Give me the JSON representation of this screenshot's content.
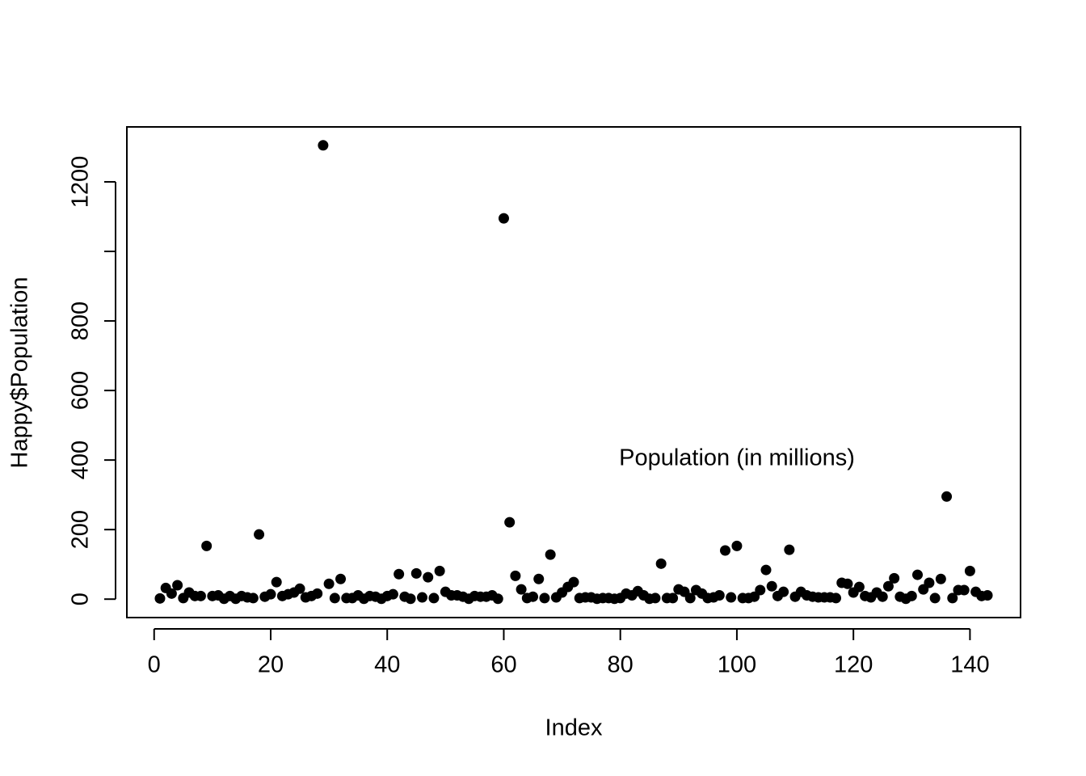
{
  "chart_data": {
    "type": "scatter",
    "xlabel": "Index",
    "ylabel": "Happy$Population",
    "annotation": "Population (in millions)",
    "color": "#000000",
    "xlim": [
      -4.68,
      148.68
    ],
    "ylim": [
      -53,
      1358
    ],
    "xticks": [
      0,
      20,
      40,
      60,
      80,
      100,
      120,
      140
    ],
    "yticks": [
      0,
      200,
      400,
      600,
      800,
      1200
    ],
    "yticks_unlabeled": [
      1000
    ],
    "x": [
      1,
      2,
      3,
      4,
      5,
      6,
      7,
      8,
      9,
      10,
      11,
      12,
      13,
      14,
      15,
      16,
      17,
      18,
      19,
      20,
      21,
      22,
      23,
      24,
      25,
      26,
      27,
      28,
      29,
      30,
      31,
      32,
      33,
      34,
      35,
      36,
      37,
      38,
      39,
      40,
      41,
      42,
      43,
      44,
      45,
      46,
      47,
      48,
      49,
      50,
      51,
      52,
      53,
      54,
      55,
      56,
      57,
      58,
      59,
      60,
      61,
      62,
      63,
      64,
      65,
      66,
      67,
      68,
      69,
      70,
      71,
      72,
      73,
      74,
      75,
      76,
      77,
      78,
      79,
      80,
      81,
      82,
      83,
      84,
      85,
      86,
      87,
      88,
      89,
      90,
      91,
      92,
      93,
      94,
      95,
      96,
      97,
      98,
      99,
      100,
      101,
      102,
      103,
      104,
      105,
      106,
      107,
      108,
      109,
      110,
      111,
      112,
      113,
      114,
      115,
      116,
      117,
      118,
      119,
      120,
      121,
      122,
      123,
      124,
      125,
      126,
      127,
      128,
      129,
      130,
      131,
      132,
      133,
      134,
      135,
      136,
      137,
      138,
      139,
      140,
      141,
      142,
      143
    ],
    "values": [
      2,
      32,
      16,
      40,
      3,
      19,
      9,
      9,
      153,
      9,
      11,
      1,
      9,
      1,
      9,
      5,
      3,
      186,
      7,
      14,
      49,
      9,
      14,
      19,
      30,
      5,
      9,
      16,
      1305,
      44,
      3,
      58,
      3,
      3,
      11,
      1,
      9,
      7,
      1,
      9,
      14,
      72,
      7,
      1,
      74,
      5,
      63,
      3,
      81,
      21,
      11,
      11,
      7,
      1,
      9,
      7,
      7,
      11,
      1,
      1095,
      221,
      67,
      28,
      3,
      7,
      58,
      3,
      128,
      5,
      19,
      35,
      49,
      3,
      5,
      5,
      1,
      3,
      3,
      1,
      3,
      16,
      11,
      23,
      11,
      1,
      3,
      102,
      3,
      3,
      28,
      21,
      3,
      26,
      16,
      3,
      5,
      11,
      140,
      5,
      153,
      3,
      3,
      7,
      26,
      84,
      37,
      9,
      21,
      142,
      7,
      21,
      11,
      7,
      5,
      5,
      5,
      3,
      47,
      44,
      19,
      35,
      9,
      5,
      19,
      7,
      37,
      60,
      7,
      1,
      9,
      70,
      28,
      47,
      3,
      58,
      295,
      3,
      26,
      26,
      81,
      21,
      9,
      11
    ]
  }
}
